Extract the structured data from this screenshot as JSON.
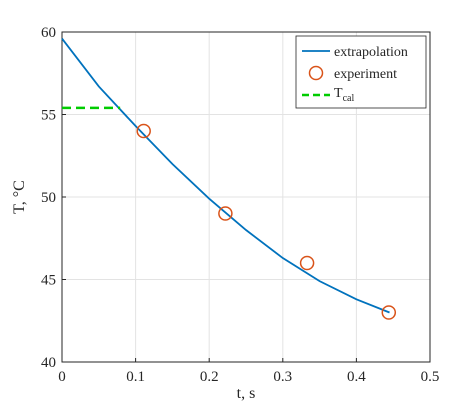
{
  "chart_data": {
    "type": "line",
    "title": "",
    "xlabel": "t, s",
    "ylabel": "T, °C",
    "xlim": [
      0,
      0.5
    ],
    "ylim": [
      40,
      60
    ],
    "xticks": [
      0,
      0.1,
      0.2,
      0.3,
      0.4,
      0.5
    ],
    "xtick_labels": [
      "0",
      "0.1",
      "0.2",
      "0.3",
      "0.4",
      "0.5"
    ],
    "yticks": [
      40,
      45,
      50,
      55,
      60
    ],
    "ytick_labels": [
      "40",
      "45",
      "50",
      "55",
      "60"
    ],
    "grid": true,
    "legend_position": "top-right",
    "series": [
      {
        "name": "extrapolation",
        "style": "solid-line",
        "color": "#0072BD",
        "x": [
          0,
          0.05,
          0.1,
          0.15,
          0.2,
          0.25,
          0.3,
          0.35,
          0.4,
          0.445
        ],
        "y": [
          59.6,
          56.7,
          54.3,
          52.0,
          49.9,
          48.0,
          46.3,
          44.9,
          43.8,
          43.0
        ]
      },
      {
        "name": "experiment",
        "style": "markers",
        "color": "#D95319",
        "x": [
          0.111,
          0.222,
          0.333,
          0.444
        ],
        "y": [
          54.0,
          49.0,
          46.0,
          43.0
        ]
      },
      {
        "name": "T",
        "name_subscript": "cal",
        "style": "dashed-line",
        "color": "#00CC00",
        "x": [
          0,
          0.079
        ],
        "y": [
          55.4,
          55.4
        ]
      }
    ]
  }
}
